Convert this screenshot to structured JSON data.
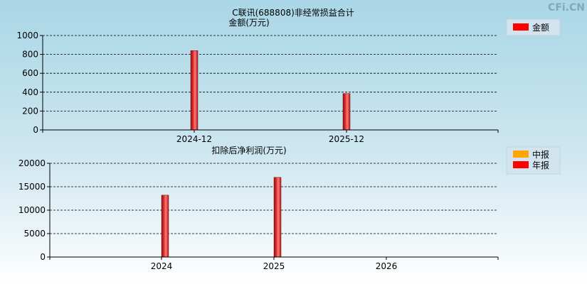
{
  "watermark": "CFi.CN",
  "colors": {
    "annual": "#ff0000",
    "interim": "#ffa500",
    "bar_dark": "#8a1010",
    "bar_mid": "#e23030",
    "bar_light": "#ff8080"
  },
  "chart_data": [
    {
      "type": "bar",
      "title": "C联讯(688808)非经常损益合计",
      "ylabel": "金额(万元)",
      "categories": [
        "2024-12",
        "2025-12"
      ],
      "series": [
        {
          "name": "金额",
          "values": [
            840,
            385
          ]
        }
      ],
      "ylim": [
        0,
        1000
      ],
      "yticks": [
        0,
        200,
        400,
        600,
        800,
        1000
      ],
      "grid": true,
      "legend": "top-right"
    },
    {
      "type": "bar",
      "title": "扣除后净利润(万元)",
      "categories": [
        "2024",
        "2025",
        "2026"
      ],
      "series": [
        {
          "name": "中报",
          "values": [
            null,
            null,
            null
          ]
        },
        {
          "name": "年报",
          "values": [
            13200,
            17000,
            null
          ]
        }
      ],
      "ylim": [
        0,
        20000
      ],
      "yticks": [
        0,
        5000,
        10000,
        15000,
        20000
      ],
      "grid": true,
      "legend": "top-right"
    }
  ]
}
